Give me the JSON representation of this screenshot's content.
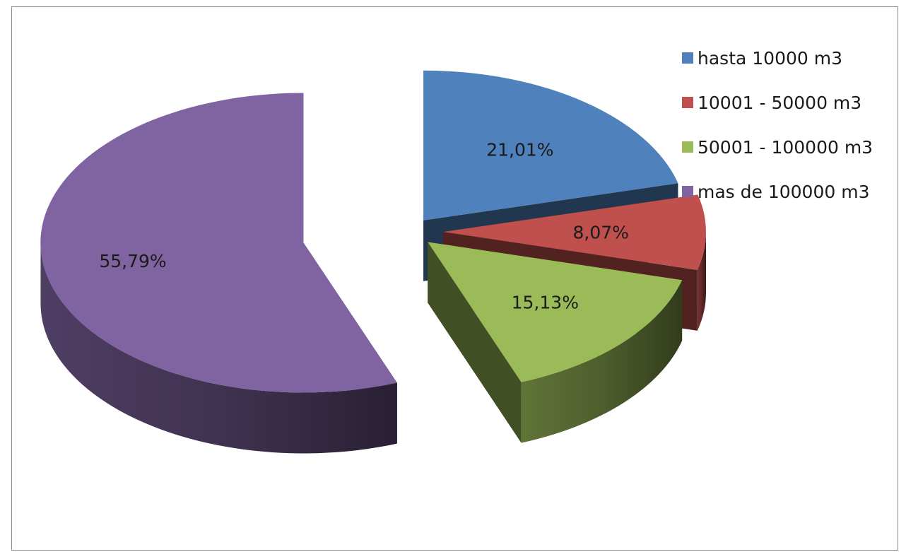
{
  "chart_data": {
    "type": "pie",
    "style": "3d-exploded",
    "categories": [
      "hasta 10000 m3",
      "10001 - 50000 m3",
      "50001 - 100000 m3",
      "mas de 100000 m3"
    ],
    "values": [
      21.01,
      8.07,
      15.13,
      55.79
    ],
    "data_labels": [
      "21,01%",
      "8,07%",
      "15,13%",
      "55,79%"
    ],
    "colors": [
      "#4f81bd",
      "#c0504d",
      "#9bbb59",
      "#8064a2"
    ],
    "title": "",
    "legend_position": "top-right"
  }
}
